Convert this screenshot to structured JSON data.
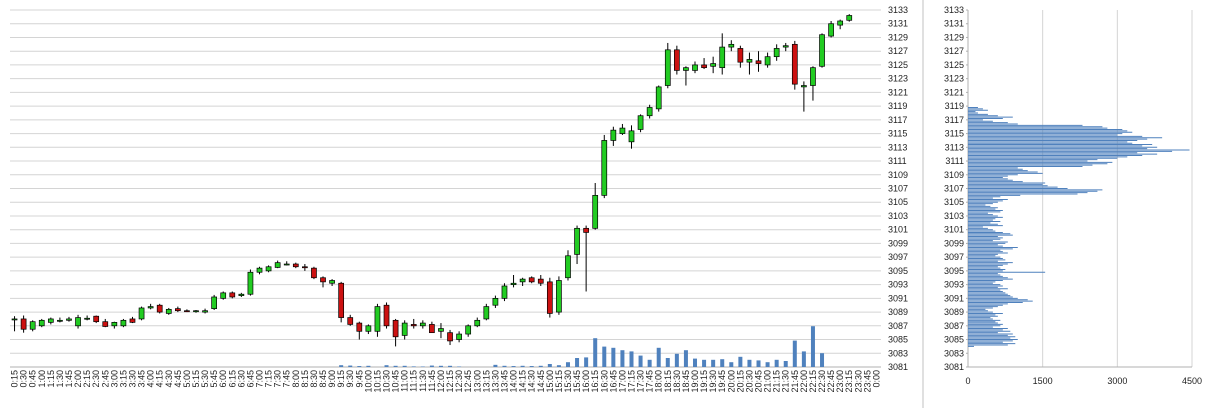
{
  "colors": {
    "up": "#22cc22",
    "down": "#cc1111",
    "volume": "#4f81bd",
    "profile": "#4f81bd",
    "grid": "#d4d4d4",
    "separator": "#c0c0c0",
    "axis_text": "#222222"
  },
  "chart_data": [
    {
      "type": "candlestick",
      "title": "",
      "xlabel": "",
      "ylabel": "",
      "ylim": [
        3081,
        3133
      ],
      "yticks": [
        3081,
        3083,
        3085,
        3087,
        3089,
        3091,
        3093,
        3095,
        3097,
        3099,
        3101,
        3103,
        3105,
        3107,
        3109,
        3111,
        3113,
        3115,
        3117,
        3119,
        3121,
        3123,
        3125,
        3127,
        3129,
        3131,
        3133
      ],
      "grid": true,
      "categories": [
        "0:15",
        "0:30",
        "0:45",
        "1:00",
        "1:15",
        "1:30",
        "1:45",
        "2:00",
        "2:15",
        "2:30",
        "2:45",
        "3:00",
        "3:15",
        "3:30",
        "3:45",
        "4:00",
        "4:15",
        "4:30",
        "4:45",
        "5:00",
        "5:15",
        "5:30",
        "5:45",
        "6:00",
        "6:15",
        "6:30",
        "6:45",
        "7:00",
        "7:15",
        "7:30",
        "7:45",
        "8:00",
        "8:15",
        "8:30",
        "8:45",
        "9:00",
        "9:15",
        "9:30",
        "9:45",
        "10:00",
        "10:15",
        "10:30",
        "10:45",
        "11:00",
        "11:15",
        "11:30",
        "11:45",
        "12:00",
        "12:15",
        "12:30",
        "12:45",
        "13:00",
        "13:15",
        "13:30",
        "13:45",
        "14:00",
        "14:15",
        "14:30",
        "14:45",
        "15:00",
        "15:15",
        "15:30",
        "15:45",
        "16:00",
        "16:15",
        "16:30",
        "16:45",
        "17:00",
        "17:15",
        "17:30",
        "17:45",
        "18:00",
        "18:15",
        "18:30",
        "18:45",
        "19:00",
        "19:15",
        "19:30",
        "19:45",
        "20:00",
        "20:15",
        "20:30",
        "20:45",
        "21:00",
        "21:15",
        "21:30",
        "21:45",
        "22:00",
        "22:15",
        "22:30",
        "22:45",
        "23:00",
        "23:15",
        "23:30",
        "23:45",
        "0:00"
      ],
      "ohlc": [
        [
          3088.0,
          3088.4,
          3086.2,
          3088.0
        ],
        [
          3088.0,
          3088.5,
          3086.0,
          3086.5
        ],
        [
          3086.5,
          3087.8,
          3086.2,
          3087.6
        ],
        [
          3087.0,
          3088.0,
          3086.8,
          3087.8
        ],
        [
          3087.5,
          3088.2,
          3087.2,
          3088.0
        ],
        [
          3087.8,
          3088.2,
          3087.5,
          3087.8
        ],
        [
          3087.8,
          3088.3,
          3087.6,
          3088.0
        ],
        [
          3087.0,
          3088.6,
          3086.6,
          3088.2
        ],
        [
          3088.0,
          3088.5,
          3087.8,
          3088.1
        ],
        [
          3088.4,
          3088.5,
          3087.4,
          3087.6
        ],
        [
          3087.6,
          3088.0,
          3086.8,
          3086.9
        ],
        [
          3087.0,
          3087.6,
          3086.6,
          3087.5
        ],
        [
          3087.0,
          3088.0,
          3086.8,
          3087.8
        ],
        [
          3088.0,
          3088.3,
          3087.4,
          3087.5
        ],
        [
          3088.0,
          3089.8,
          3087.8,
          3089.6
        ],
        [
          3089.6,
          3090.2,
          3089.4,
          3089.8
        ],
        [
          3090.0,
          3090.2,
          3088.8,
          3089.0
        ],
        [
          3088.8,
          3089.6,
          3088.6,
          3089.4
        ],
        [
          3089.5,
          3089.8,
          3089.0,
          3089.2
        ],
        [
          3089.2,
          3089.4,
          3089.0,
          3089.1
        ],
        [
          3089.1,
          3089.3,
          3088.9,
          3089.2
        ],
        [
          3089.0,
          3089.5,
          3088.8,
          3089.2
        ],
        [
          3089.5,
          3091.5,
          3089.3,
          3091.2
        ],
        [
          3091.0,
          3092.0,
          3090.8,
          3091.8
        ],
        [
          3091.8,
          3092.0,
          3091.0,
          3091.2
        ],
        [
          3091.4,
          3091.8,
          3091.2,
          3091.6
        ],
        [
          3091.6,
          3095.2,
          3091.4,
          3094.8
        ],
        [
          3094.8,
          3095.6,
          3094.5,
          3095.4
        ],
        [
          3095.0,
          3095.8,
          3094.8,
          3095.6
        ],
        [
          3095.5,
          3096.5,
          3095.4,
          3096.2
        ],
        [
          3096.0,
          3096.4,
          3095.8,
          3096.0
        ],
        [
          3096.0,
          3096.2,
          3095.4,
          3095.6
        ],
        [
          3095.6,
          3096.0,
          3095.0,
          3095.5
        ],
        [
          3095.4,
          3095.6,
          3093.8,
          3094.0
        ],
        [
          3094.0,
          3094.2,
          3092.6,
          3093.4
        ],
        [
          3093.2,
          3093.8,
          3092.8,
          3093.6
        ],
        [
          3093.2,
          3093.4,
          3087.5,
          3088.2
        ],
        [
          3088.2,
          3088.6,
          3087.0,
          3087.2
        ],
        [
          3087.4,
          3087.6,
          3085.0,
          3086.2
        ],
        [
          3086.2,
          3087.2,
          3085.8,
          3087.0
        ],
        [
          3086.2,
          3090.2,
          3085.4,
          3089.8
        ],
        [
          3090.0,
          3090.4,
          3086.6,
          3087.0
        ],
        [
          3087.8,
          3088.0,
          3084.0,
          3085.4
        ],
        [
          3085.6,
          3087.8,
          3085.0,
          3087.4
        ],
        [
          3087.2,
          3088.0,
          3086.6,
          3087.0
        ],
        [
          3087.0,
          3087.8,
          3086.6,
          3087.4
        ],
        [
          3087.2,
          3087.6,
          3086.4,
          3086.0
        ],
        [
          3086.2,
          3087.4,
          3085.2,
          3086.6
        ],
        [
          3086.0,
          3086.4,
          3084.2,
          3084.8
        ],
        [
          3085.0,
          3086.2,
          3084.6,
          3085.8
        ],
        [
          3085.8,
          3087.2,
          3085.4,
          3087.0
        ],
        [
          3087.0,
          3088.2,
          3086.8,
          3087.8
        ],
        [
          3088.0,
          3090.2,
          3087.8,
          3089.8
        ],
        [
          3090.0,
          3091.4,
          3089.6,
          3091.0
        ],
        [
          3091.0,
          3093.2,
          3090.6,
          3092.8
        ],
        [
          3093.0,
          3094.4,
          3092.6,
          3093.2
        ],
        [
          3093.4,
          3094.0,
          3092.8,
          3093.8
        ],
        [
          3094.0,
          3094.2,
          3093.2,
          3093.4
        ],
        [
          3093.8,
          3094.4,
          3092.8,
          3093.2
        ],
        [
          3093.4,
          3094.0,
          3088.2,
          3088.8
        ],
        [
          3089.0,
          3094.2,
          3088.6,
          3093.6
        ],
        [
          3094.0,
          3098.0,
          3093.6,
          3097.2
        ],
        [
          3097.4,
          3101.6,
          3096.0,
          3101.2
        ],
        [
          3101.2,
          3101.6,
          3092.0,
          3100.6
        ],
        [
          3101.2,
          3107.8,
          3101.0,
          3106.0
        ],
        [
          3106.0,
          3114.8,
          3105.6,
          3114.0
        ],
        [
          3114.0,
          3116.0,
          3113.2,
          3115.5
        ],
        [
          3115.0,
          3116.4,
          3114.8,
          3115.8
        ],
        [
          3113.8,
          3116.2,
          3112.8,
          3115.4
        ],
        [
          3115.6,
          3117.8,
          3115.2,
          3117.6
        ],
        [
          3117.6,
          3119.2,
          3117.2,
          3118.8
        ],
        [
          3118.6,
          3122.0,
          3118.2,
          3121.8
        ],
        [
          3122.0,
          3128.2,
          3121.6,
          3127.2
        ],
        [
          3127.2,
          3127.8,
          3123.6,
          3124.2
        ],
        [
          3124.2,
          3124.8,
          3122.0,
          3124.6
        ],
        [
          3124.2,
          3125.5,
          3123.8,
          3125.0
        ],
        [
          3125.0,
          3126.0,
          3124.4,
          3124.6
        ],
        [
          3124.8,
          3126.2,
          3123.8,
          3125.2
        ],
        [
          3124.6,
          3129.6,
          3123.6,
          3127.6
        ],
        [
          3127.6,
          3128.6,
          3127.0,
          3128.0
        ],
        [
          3127.4,
          3127.8,
          3124.6,
          3125.4
        ],
        [
          3125.4,
          3126.8,
          3123.6,
          3125.8
        ],
        [
          3125.6,
          3127.0,
          3124.0,
          3125.2
        ],
        [
          3125.0,
          3126.8,
          3124.6,
          3126.2
        ],
        [
          3126.2,
          3128.0,
          3125.6,
          3127.4
        ],
        [
          3127.6,
          3128.2,
          3127.0,
          3127.8
        ],
        [
          3128.0,
          3128.5,
          3121.4,
          3122.2
        ],
        [
          3121.8,
          3122.6,
          3118.2,
          3122.0
        ],
        [
          3122.0,
          3124.8,
          3119.8,
          3124.6
        ],
        [
          3124.8,
          3129.6,
          3124.6,
          3129.4
        ],
        [
          3129.2,
          3131.4,
          3129.0,
          3131.0
        ],
        [
          3130.8,
          3131.6,
          3130.2,
          3131.4
        ],
        [
          3131.5,
          3132.4,
          3131.3,
          3132.2
        ]
      ],
      "volume": [
        0,
        0,
        0,
        0,
        0,
        0,
        0,
        0,
        0,
        0,
        0,
        0,
        0,
        0,
        0,
        0,
        0,
        0,
        0,
        0,
        0,
        0,
        0,
        0,
        0,
        0,
        0,
        0,
        0,
        0,
        0,
        0,
        0,
        0,
        0,
        0,
        15,
        12,
        8,
        10,
        0,
        15,
        10,
        10,
        5,
        4,
        12,
        10,
        10,
        4,
        0,
        0,
        0,
        18,
        10,
        8,
        10,
        8,
        10,
        25,
        15,
        40,
        75,
        80,
        240,
        170,
        160,
        140,
        130,
        95,
        60,
        160,
        75,
        110,
        140,
        70,
        60,
        60,
        65,
        40,
        85,
        60,
        55,
        40,
        60,
        50,
        220,
        130,
        340,
        115,
        0,
        0,
        0,
        0,
        0,
        0
      ],
      "volume_max": 1000
    },
    {
      "type": "bar",
      "orientation": "horizontal",
      "title": "",
      "xlabel": "",
      "ylabel": "",
      "xlim": [
        0,
        4500
      ],
      "xticks": [
        0,
        1500,
        3000,
        4500
      ],
      "ylim": [
        3081,
        3133
      ],
      "yticks": [
        3081,
        3083,
        3085,
        3087,
        3089,
        3091,
        3093,
        3095,
        3097,
        3099,
        3101,
        3103,
        3105,
        3107,
        3109,
        3111,
        3113,
        3115,
        3117,
        3119,
        3121,
        3123,
        3125,
        3127,
        3129,
        3131,
        3133
      ],
      "grid": true,
      "price_step": 0.2,
      "price_start": 3084.0,
      "values": [
        120,
        800,
        950,
        700,
        900,
        1000,
        850,
        950,
        800,
        900,
        600,
        850,
        700,
        800,
        500,
        650,
        700,
        600,
        550,
        650,
        500,
        450,
        600,
        550,
        700,
        500,
        400,
        350,
        500,
        600,
        700,
        800,
        1100,
        1300,
        1200,
        1000,
        900,
        850,
        800,
        750,
        700,
        650,
        800,
        600,
        700,
        650,
        500,
        550,
        700,
        900,
        800,
        700,
        650,
        600,
        1550,
        700,
        750,
        650,
        600,
        700,
        800,
        900,
        600,
        750,
        700,
        650,
        550,
        600,
        800,
        700,
        650,
        900,
        1000,
        700,
        600,
        750,
        800,
        500,
        650,
        700,
        600,
        900,
        850,
        700,
        550,
        500,
        400,
        300,
        700,
        600,
        450,
        650,
        500,
        550,
        700,
        600,
        500,
        400,
        650,
        700,
        550,
        600,
        450,
        350,
        500,
        600,
        700,
        800,
        500,
        650,
        1050,
        2200,
        2400,
        2600,
        2700,
        2000,
        1800,
        1600,
        1500,
        1550,
        1100,
        900,
        800,
        700,
        800,
        1000,
        1500,
        1400,
        1200,
        1100,
        1000,
        2300,
        2500,
        2800,
        2900,
        2400,
        2600,
        3000,
        3200,
        3500,
        3800,
        3400,
        4100,
        4450,
        3600,
        3800,
        3500,
        3700,
        3300,
        3200,
        3400,
        3600,
        3900,
        3500,
        3000,
        3100,
        3300,
        3200,
        3100,
        2800,
        2700,
        2300,
        1000,
        800,
        500,
        300,
        700,
        900,
        600,
        400,
        200,
        150,
        400,
        300,
        200,
        0,
        0,
        0,
        0,
        0
      ]
    }
  ]
}
